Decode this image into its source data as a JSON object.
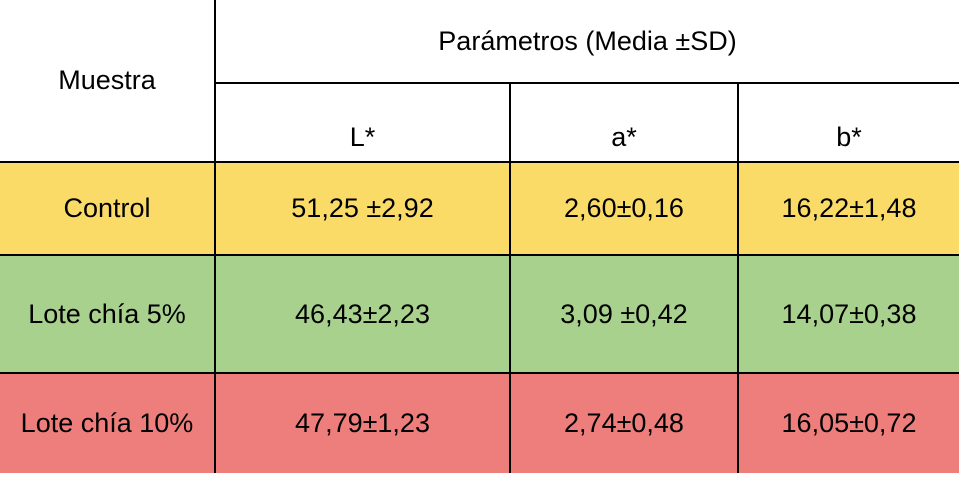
{
  "header": {
    "sample": "Muestra",
    "group": "Parámetros (Media ±SD)",
    "columns": [
      "L*",
      "a*",
      "b*"
    ]
  },
  "table": {
    "rows": [
      [
        "Control",
        "51,25 ±2,92",
        "2,60±0,16",
        "16,22±1,48"
      ],
      [
        "Lote chía 5%",
        "46,43±2,23",
        "3,09 ±0,42",
        "14,07±0,38"
      ],
      [
        "Lote chía 10%",
        "47,79±1,23",
        "2,74±0,48",
        "16,05±0,72"
      ]
    ]
  }
}
